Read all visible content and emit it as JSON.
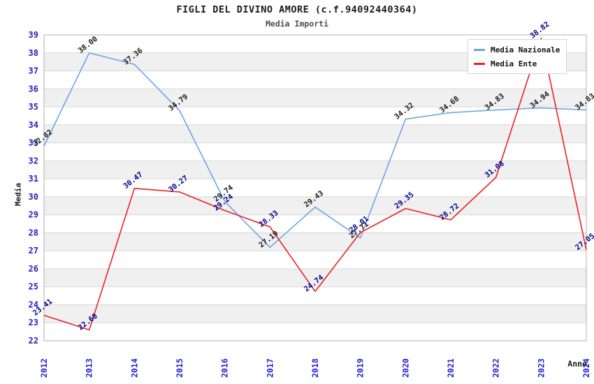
{
  "header": {
    "title": "FIGLI DEL DIVINO AMORE (c.f.94092440364)",
    "subtitle": "Media Importi"
  },
  "axes": {
    "x_title": "Anno",
    "y_title": "Media"
  },
  "legend": {
    "items": [
      {
        "name": "media-nazionale",
        "label": "Media Nazionale"
      },
      {
        "name": "media-ente",
        "label": "Media Ente"
      }
    ]
  },
  "colors": {
    "nazionale_line": "#6ca6e3",
    "ente_line": "#ee2020",
    "tick_text": "#2222cc",
    "label_nazionale": "#1a1a1a",
    "label_ente": "#00008b",
    "band": "#f0f0f0",
    "grid": "#d8d8d8",
    "plot_border": "#b0b0b0"
  },
  "chart_data": {
    "type": "line",
    "title": "FIGLI DEL DIVINO AMORE (c.f.94092440364)",
    "subtitle": "Media Importi",
    "xlabel": "Anno",
    "ylabel": "Media",
    "x": [
      2012,
      2013,
      2014,
      2015,
      2016,
      2017,
      2018,
      2019,
      2020,
      2021,
      2022,
      2023,
      2024
    ],
    "series": [
      {
        "name": "Media Nazionale",
        "color": "#6ca6e3",
        "label_color": "#1a1a1a",
        "values": [
          32.82,
          38.0,
          37.36,
          34.79,
          29.74,
          27.19,
          29.43,
          27.71,
          34.32,
          34.68,
          34.83,
          34.94,
          34.83
        ]
      },
      {
        "name": "Media Ente",
        "color": "#ee2020",
        "label_color": "#00008b",
        "values": [
          23.41,
          22.6,
          30.47,
          30.27,
          29.24,
          28.33,
          24.74,
          28.01,
          29.35,
          28.72,
          31.08,
          38.82,
          27.05
        ]
      }
    ],
    "ylim": [
      22,
      39
    ],
    "ytick_step": 1,
    "grid": true,
    "banded_background": true,
    "legend_position": "top-right",
    "point_labels": "two-decimals, rotated"
  }
}
